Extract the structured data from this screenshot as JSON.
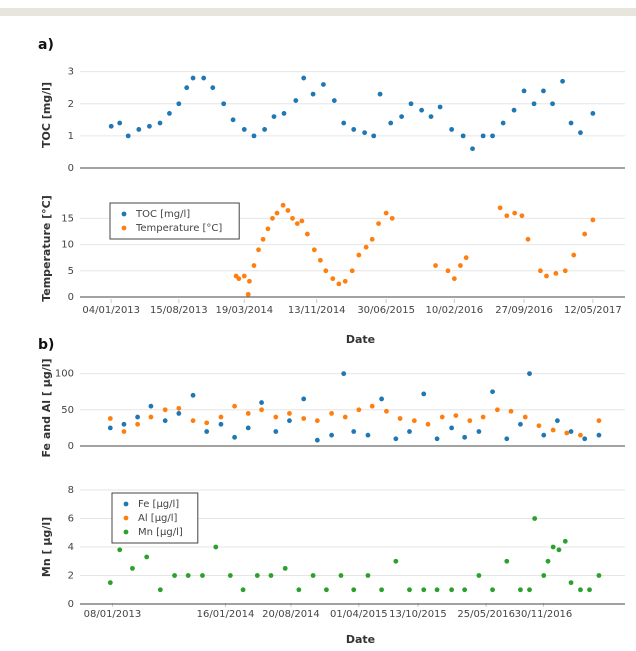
{
  "chart_data": [
    {
      "type": "scatter",
      "panel": "a)",
      "xlabel": "Date",
      "legend": "upper left",
      "grid": true,
      "xlim": [
        "23/09/2012",
        "26/08/2017"
      ],
      "xticks": [
        "04/01/2013",
        "15/08/2013",
        "19/03/2014",
        "13/11/2014",
        "30/06/2015",
        "10/02/2016",
        "27/09/2016",
        "12/05/2017"
      ],
      "subplots": [
        {
          "ylabel": "TOC [mg/l]",
          "ylim": [
            0,
            3.3
          ],
          "yticks": [
            0,
            1,
            2,
            3
          ],
          "series": [
            {
              "name": "TOC [mg/l]",
              "color": "#1f77b4",
              "x": [
                "04/01/2013",
                "01/02/2013",
                "01/03/2013",
                "05/04/2013",
                "10/05/2013",
                "14/06/2013",
                "15/07/2013",
                "15/08/2013",
                "10/09/2013",
                "01/10/2013",
                "05/11/2013",
                "05/12/2013",
                "10/01/2014",
                "10/02/2014",
                "19/03/2014",
                "20/04/2014",
                "25/05/2014",
                "25/06/2014",
                "28/07/2014",
                "05/09/2014",
                "01/10/2014",
                "01/11/2014",
                "05/12/2014",
                "10/01/2015",
                "10/02/2015",
                "15/03/2015",
                "20/04/2015",
                "20/05/2015",
                "10/06/2015",
                "15/07/2015",
                "20/08/2015",
                "20/09/2015",
                "25/10/2015",
                "25/11/2015",
                "25/12/2015",
                "01/02/2016",
                "10/03/2016",
                "10/04/2016",
                "15/05/2016",
                "15/06/2016",
                "20/07/2016",
                "25/08/2016",
                "27/09/2016",
                "30/10/2016",
                "30/11/2016",
                "30/12/2016",
                "01/02/2017",
                "01/03/2017",
                "01/04/2017",
                "12/05/2017"
              ],
              "values": [
                1.3,
                1.4,
                1.0,
                1.2,
                1.3,
                1.4,
                1.7,
                2.0,
                2.5,
                2.8,
                2.8,
                2.5,
                2.0,
                1.5,
                1.2,
                1.0,
                1.2,
                1.6,
                1.7,
                2.1,
                2.8,
                2.3,
                2.6,
                2.1,
                1.4,
                1.2,
                1.1,
                1.0,
                2.3,
                1.4,
                1.6,
                2.0,
                1.8,
                1.6,
                1.9,
                1.2,
                1.0,
                0.6,
                1.0,
                1.0,
                1.4,
                1.8,
                2.4,
                2.0,
                2.4,
                2.0,
                2.7,
                1.4,
                1.1,
                1.7
              ]
            }
          ]
        },
        {
          "ylabel": "Temperature [°C]",
          "ylim": [
            0,
            18.5
          ],
          "yticks": [
            0,
            5,
            10,
            15
          ],
          "series": [
            {
              "name": "Temperature [°C]",
              "color": "#ff7f0e",
              "x": [
                "20/02/2014",
                "01/03/2014",
                "19/03/2014",
                "01/04/2014",
                "05/04/2014",
                "20/04/2014",
                "05/05/2014",
                "20/05/2014",
                "05/06/2014",
                "20/06/2014",
                "05/07/2014",
                "25/07/2014",
                "10/08/2014",
                "25/08/2014",
                "10/09/2014",
                "25/09/2014",
                "13/10/2014",
                "05/11/2014",
                "25/11/2014",
                "13/12/2014",
                "05/01/2015",
                "25/01/2015",
                "15/02/2015",
                "10/03/2015",
                "01/04/2015",
                "25/04/2015",
                "15/05/2015",
                "05/06/2015",
                "30/06/2015",
                "20/07/2015",
                "10/12/2015",
                "20/01/2016",
                "10/02/2016",
                "01/03/2016",
                "20/03/2016",
                "10/07/2016",
                "01/08/2016",
                "27/08/2016",
                "20/09/2016",
                "10/10/2016",
                "20/11/2016",
                "10/12/2016",
                "10/01/2017",
                "10/02/2017",
                "10/03/2017",
                "15/04/2017",
                "12/05/2017"
              ],
              "values": [
                4,
                3.5,
                4,
                0.5,
                3,
                6,
                9,
                11,
                13,
                15,
                16,
                17.5,
                16.5,
                15,
                14,
                14.5,
                12,
                9,
                7,
                5,
                3.5,
                2.5,
                3,
                5,
                8,
                9.5,
                11,
                14,
                16,
                15,
                6,
                5,
                3.5,
                6,
                7.5,
                17,
                15.5,
                16,
                15.5,
                11,
                5,
                4,
                4.5,
                5,
                8,
                12,
                14.7
              ]
            }
          ]
        }
      ]
    },
    {
      "type": "scatter",
      "panel": "b)",
      "xlabel": "Date",
      "legend": "upper left",
      "grid": true,
      "xlim": [
        "23/09/2012",
        "26/08/2017"
      ],
      "xticks": [
        "08/01/2013",
        "16/01/2014",
        "20/08/2014",
        "01/04/2015",
        "13/10/2015",
        "25/05/2016",
        "30/11/2016"
      ],
      "subplots": [
        {
          "ylabel": "Fe and Al [ µg/l]",
          "ylim": [
            0,
            105
          ],
          "yticks": [
            0,
            50,
            100
          ],
          "series": [
            {
              "name": "Fe [µg/l]",
              "color": "#1f77b4",
              "x": [
                "01/01/2013",
                "15/02/2013",
                "01/04/2013",
                "15/05/2013",
                "01/07/2013",
                "15/08/2013",
                "01/10/2013",
                "15/11/2013",
                "01/01/2014",
                "15/02/2014",
                "01/04/2014",
                "15/05/2014",
                "01/07/2014",
                "15/08/2014",
                "01/10/2014",
                "15/11/2014",
                "01/01/2015",
                "10/02/2015",
                "15/03/2015",
                "01/05/2015",
                "15/06/2015",
                "01/08/2015",
                "15/09/2015",
                "01/11/2015",
                "15/12/2015",
                "01/02/2016",
                "15/03/2016",
                "01/05/2016",
                "15/06/2016",
                "01/08/2016",
                "15/09/2016",
                "15/10/2016",
                "01/12/2016",
                "15/01/2017",
                "01/03/2017",
                "15/04/2017",
                "01/06/2017"
              ],
              "values": [
                25,
                30,
                40,
                55,
                35,
                45,
                70,
                20,
                30,
                12,
                25,
                60,
                20,
                35,
                65,
                8,
                15,
                100,
                20,
                15,
                65,
                10,
                20,
                72,
                10,
                25,
                12,
                20,
                75,
                10,
                30,
                100,
                15,
                35,
                20,
                10,
                15
              ]
            },
            {
              "name": "Al [µg/l]",
              "color": "#ff7f0e",
              "x": [
                "01/01/2013",
                "15/02/2013",
                "01/04/2013",
                "15/05/2013",
                "01/07/2013",
                "15/08/2013",
                "01/10/2013",
                "15/11/2013",
                "01/01/2014",
                "15/02/2014",
                "01/04/2014",
                "15/05/2014",
                "01/07/2014",
                "15/08/2014",
                "01/10/2014",
                "15/11/2014",
                "01/01/2015",
                "15/02/2015",
                "01/04/2015",
                "15/05/2015",
                "01/07/2015",
                "15/08/2015",
                "01/10/2015",
                "15/11/2015",
                "01/01/2016",
                "15/02/2016",
                "01/04/2016",
                "15/05/2016",
                "01/07/2016",
                "15/08/2016",
                "01/10/2016",
                "15/11/2016",
                "01/01/2017",
                "15/02/2017",
                "01/04/2017",
                "01/06/2017"
              ],
              "values": [
                38,
                20,
                30,
                40,
                50,
                52,
                35,
                32,
                40,
                55,
                45,
                50,
                40,
                45,
                38,
                35,
                45,
                40,
                50,
                55,
                48,
                38,
                35,
                30,
                40,
                42,
                35,
                40,
                50,
                48,
                40,
                28,
                22,
                18,
                15,
                35
              ]
            }
          ]
        },
        {
          "ylabel": "Mn [ µg/l]",
          "ylim": [
            0,
            8
          ],
          "yticks": [
            0,
            2,
            4,
            6,
            8
          ],
          "series": [
            {
              "name": "Mn [µg/l]",
              "color": "#2ca02c",
              "x": [
                "01/01/2013",
                "01/02/2013",
                "15/03/2013",
                "01/05/2013",
                "15/06/2013",
                "01/08/2013",
                "15/09/2013",
                "01/11/2013",
                "15/12/2013",
                "01/02/2014",
                "15/03/2014",
                "01/05/2014",
                "15/06/2014",
                "01/08/2014",
                "15/09/2014",
                "01/11/2014",
                "15/12/2014",
                "01/02/2015",
                "15/03/2015",
                "01/05/2015",
                "15/06/2015",
                "01/08/2015",
                "15/09/2015",
                "01/11/2015",
                "15/12/2015",
                "01/02/2016",
                "15/03/2016",
                "01/05/2016",
                "15/06/2016",
                "01/08/2016",
                "15/09/2016",
                "15/10/2016",
                "01/11/2016",
                "01/12/2016",
                "15/12/2016",
                "01/01/2017",
                "20/01/2017",
                "10/02/2017",
                "01/03/2017",
                "01/04/2017",
                "01/05/2017",
                "01/06/2017"
              ],
              "values": [
                1.5,
                3.8,
                2.5,
                3.3,
                1,
                2,
                2,
                2,
                4,
                2,
                1,
                2,
                2,
                2.5,
                1,
                2,
                1,
                2,
                1,
                2,
                1,
                3,
                1,
                1,
                1,
                1,
                1,
                2,
                1,
                3,
                1,
                1,
                6,
                2,
                3,
                4,
                3.8,
                4.4,
                1.5,
                1,
                1,
                2
              ]
            }
          ]
        }
      ]
    }
  ]
}
